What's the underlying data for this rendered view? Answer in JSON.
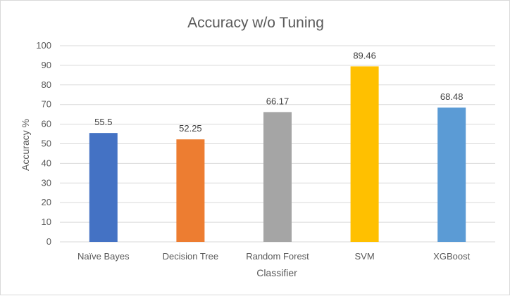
{
  "chart_data": {
    "type": "bar",
    "title": "Accuracy w/o Tuning",
    "xlabel": "Classifier",
    "ylabel": "Accuracy %",
    "categories": [
      "Naïve Bayes",
      "Decision Tree",
      "Random Forest",
      "SVM",
      "XGBoost"
    ],
    "values": [
      55.5,
      52.25,
      66.17,
      89.46,
      68.48
    ],
    "value_labels": [
      "55.5",
      "52.25",
      "66.17",
      "89.46",
      "68.48"
    ],
    "colors": [
      "#4472c4",
      "#ed7d31",
      "#a5a5a5",
      "#ffc000",
      "#5b9bd5"
    ],
    "ylim": [
      0,
      100
    ],
    "yticks": [
      0,
      10,
      20,
      30,
      40,
      50,
      60,
      70,
      80,
      90,
      100
    ],
    "grid": true,
    "gridline_color": "#d9d9d9",
    "legend": "none"
  }
}
